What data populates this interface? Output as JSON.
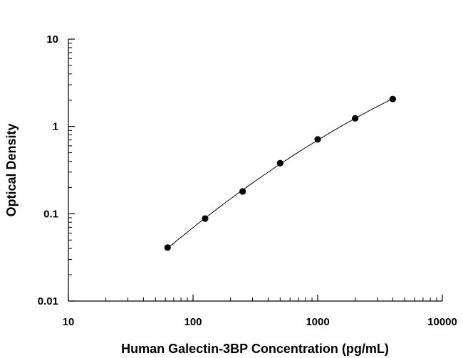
{
  "chart_data": {
    "type": "scatter",
    "title": "",
    "xlabel": "Human Galectin-3BP Concentration (pg/mL)",
    "ylabel": "Optical Density",
    "xscale": "log",
    "yscale": "log",
    "xlim": [
      10,
      10000
    ],
    "ylim": [
      0.01,
      10
    ],
    "xticks": [
      "10",
      "100",
      "1000",
      "10000"
    ],
    "yticks": [
      "0.01",
      "0.1",
      "1",
      "10"
    ],
    "grid": false,
    "legend": "none",
    "fit_line": true,
    "series": [
      {
        "x": [
          62.5,
          125,
          250,
          500,
          1000,
          2000,
          4000
        ],
        "y": [
          0.041,
          0.088,
          0.18,
          0.38,
          0.71,
          1.24,
          2.06
        ]
      }
    ],
    "colors": {
      "marker": "#000000",
      "line": "#000000"
    }
  }
}
